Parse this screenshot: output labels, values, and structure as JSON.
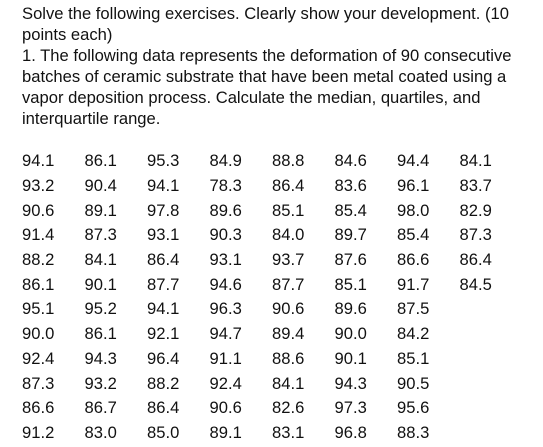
{
  "intro_lines": [
    "Solve the following exercises. Clearly show your development. (10",
    "points each)"
  ],
  "exercise_lines": [
    "1. The following data represents the deformation of 90 consecutive",
    "batches of ceramic substrate that have been metal coated using a",
    "vapor deposition process. Calculate the median, quartiles, and",
    "interquartile range."
  ],
  "data_rows": [
    [
      "94.1",
      "86.1",
      "95.3",
      "84.9",
      "88.8",
      "84.6",
      "94.4",
      "84.1"
    ],
    [
      "93.2",
      "90.4",
      "94.1",
      "78.3",
      "86.4",
      "83.6",
      "96.1",
      "83.7"
    ],
    [
      "90.6",
      "89.1",
      "97.8",
      "89.6",
      "85.1",
      "85.4",
      "98.0",
      "82.9"
    ],
    [
      "91.4",
      "87.3",
      "93.1",
      "90.3",
      "84.0",
      "89.7",
      "85.4",
      "87.3"
    ],
    [
      "88.2",
      "84.1",
      "86.4",
      "93.1",
      "93.7",
      "87.6",
      "86.6",
      "86.4"
    ],
    [
      "86.1",
      "90.1",
      "87.7",
      "94.6",
      "87.7",
      "85.1",
      "91.7",
      "84.5"
    ],
    [
      "95.1",
      "95.2",
      "94.1",
      "96.3",
      "90.6",
      "89.6",
      "87.5"
    ],
    [
      "90.0",
      "86.1",
      "92.1",
      "94.7",
      "89.4",
      "90.0",
      "84.2"
    ],
    [
      "92.4",
      "94.3",
      "96.4",
      "91.1",
      "88.6",
      "90.1",
      "85.1"
    ],
    [
      "87.3",
      "93.2",
      "88.2",
      "92.4",
      "84.1",
      "94.3",
      "90.5"
    ],
    [
      "86.6",
      "86.7",
      "86.4",
      "90.6",
      "82.6",
      "97.3",
      "95.6"
    ],
    [
      "91.2",
      "83.0",
      "85.0",
      "89.1",
      "83.1",
      "96.8",
      "88.3"
    ]
  ]
}
